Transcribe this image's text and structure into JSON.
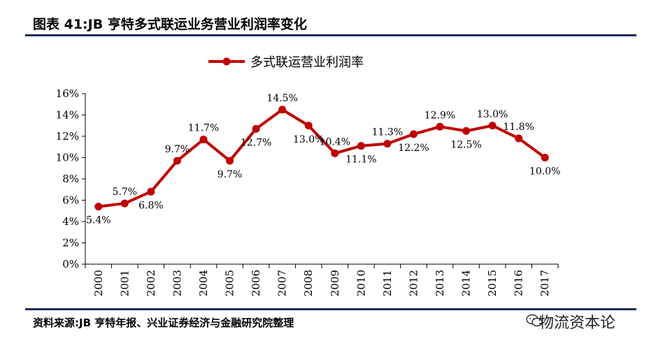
{
  "header": {
    "title": "图表 41:JB 亨特多式联运业务营业利润率变化"
  },
  "footer": {
    "source": "资料来源:JB 亨特年报、兴业证券经济与金融研究院整理",
    "watermark": "物流资本论"
  },
  "colors": {
    "series": "#c00000",
    "rule": "#1f2d5a"
  },
  "chart_data": {
    "type": "line",
    "title": "",
    "xlabel": "",
    "ylabel": "",
    "ylim": [
      0,
      16
    ],
    "y_unit": "%",
    "yticks": [
      "0%",
      "2%",
      "4%",
      "6%",
      "8%",
      "10%",
      "12%",
      "14%",
      "16%"
    ],
    "categories": [
      "2000",
      "2001",
      "2002",
      "2003",
      "2004",
      "2005",
      "2006",
      "2007",
      "2008",
      "2009",
      "2010",
      "2011",
      "2012",
      "2013",
      "2014",
      "2015",
      "2016",
      "2017"
    ],
    "legend_position": "top-center",
    "grid": false,
    "series": [
      {
        "name": "多式联运营业利润率",
        "values": [
          5.4,
          5.7,
          6.8,
          9.7,
          11.7,
          9.7,
          12.7,
          14.5,
          13.0,
          10.4,
          11.1,
          11.3,
          12.2,
          12.9,
          12.5,
          13.0,
          11.8,
          10.0
        ],
        "labels": [
          "5.4%",
          "5.7%",
          "6.8%",
          "9.7%",
          "11.7%",
          "9.7%",
          "12.7%",
          "14.5%",
          "13.0%",
          "10.4%",
          "11.1%",
          "11.3%",
          "12.2%",
          "12.9%",
          "12.5%",
          "13.0%",
          "11.8%",
          "10.0%"
        ]
      }
    ]
  }
}
